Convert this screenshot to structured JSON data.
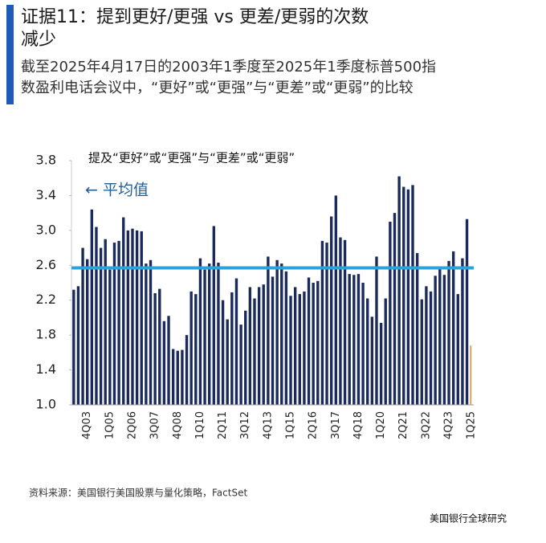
{
  "chart_data": {
    "type": "bar",
    "title_lines": [
      "证据11：提到更好/更强 vs 更差/更弱的次数",
      "减少"
    ],
    "subtitle_lines": [
      "截至2025年4月17日的2003年1季度至2025年1季度标普500指",
      "数盈利电话会议中，“更好”或“更强”与“更差”或“更弱”的比较"
    ],
    "legend_label": "提及“更好”或“更强”与“更差”或“更弱”",
    "average_label": "← 平均值",
    "average": 2.57,
    "average_color": "#29a3dc",
    "color": "#1b2a5c",
    "last_color": "#f08a24",
    "source": "资料来源：美国银行美国股票与量化策略，FactSet",
    "footer": "美国银行全球研究",
    "categories": [
      null,
      null,
      null,
      "4Q03",
      null,
      null,
      null,
      null,
      "1Q05",
      null,
      null,
      null,
      null,
      "2Q06",
      null,
      null,
      null,
      null,
      "3Q07",
      null,
      null,
      null,
      null,
      "4Q08",
      null,
      null,
      null,
      null,
      "1Q10",
      null,
      null,
      null,
      null,
      "2Q11",
      null,
      null,
      null,
      null,
      "3Q12",
      null,
      null,
      null,
      null,
      "4Q13",
      null,
      null,
      null,
      null,
      "1Q15",
      null,
      null,
      null,
      null,
      "2Q16",
      null,
      null,
      null,
      null,
      "3Q17",
      null,
      null,
      null,
      null,
      "4Q18",
      null,
      null,
      null,
      null,
      "1Q20",
      null,
      null,
      null,
      null,
      "2Q21",
      null,
      null,
      null,
      null,
      "3Q22",
      null,
      null,
      null,
      null,
      "4Q23",
      null,
      null,
      null,
      null,
      "1Q25"
    ],
    "values": [
      2.32,
      2.36,
      2.8,
      2.67,
      3.24,
      3.04,
      2.8,
      2.9,
      2.55,
      2.86,
      2.88,
      3.15,
      3.0,
      3.02,
      3.0,
      2.99,
      2.62,
      2.66,
      2.28,
      2.33,
      1.96,
      2.02,
      1.64,
      1.62,
      1.63,
      1.8,
      2.3,
      2.27,
      2.68,
      2.55,
      2.62,
      3.05,
      2.63,
      2.2,
      1.98,
      2.29,
      2.45,
      1.92,
      2.08,
      2.35,
      2.22,
      2.35,
      2.38,
      2.7,
      2.47,
      2.66,
      2.62,
      2.53,
      2.25,
      2.35,
      2.27,
      2.3,
      2.46,
      2.4,
      2.42,
      2.88,
      2.86,
      3.16,
      3.4,
      2.92,
      2.89,
      2.5,
      2.49,
      2.5,
      2.4,
      2.22,
      2.01,
      2.7,
      1.94,
      2.22,
      3.1,
      3.2,
      3.62,
      3.5,
      3.47,
      3.52,
      2.74,
      2.21,
      2.36,
      2.3,
      2.48,
      2.56,
      2.49,
      2.65,
      2.76,
      2.27,
      2.68,
      3.13,
      1.68
    ],
    "ylim": [
      1.0,
      3.8
    ],
    "yticks": [
      {
        "value": 1.0,
        "label": "1.0"
      },
      1.4,
      1.8,
      2.2,
      2.6,
      {
        "value": 3.0,
        "label": "3.0"
      },
      3.4,
      3.8
    ]
  }
}
